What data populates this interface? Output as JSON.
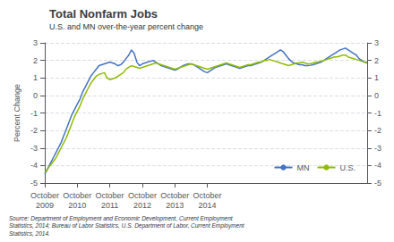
{
  "chart_data": {
    "type": "line",
    "title": "Total Nonfarm Jobs",
    "subtitle": "U.S. and MN over-the-year percent change",
    "ylabel": "Percent Change",
    "source": "Source: Department of Employment and Economic Development, Current Employment\nStatistics, 2014; Bureau of Labor Statistics, U.S. Department of Labor, Current Employment\nStatistics, 2014.",
    "categories": [
      "October\n2009",
      null,
      null,
      null,
      null,
      null,
      null,
      null,
      null,
      null,
      null,
      null,
      "October\n2010",
      null,
      null,
      null,
      null,
      null,
      null,
      null,
      null,
      null,
      null,
      null,
      "October\n2011",
      null,
      null,
      null,
      null,
      null,
      null,
      null,
      null,
      null,
      null,
      null,
      "October\n2012",
      null,
      null,
      null,
      null,
      null,
      null,
      null,
      null,
      null,
      null,
      null,
      "October\n2013",
      null,
      null,
      null,
      null,
      null,
      null,
      null,
      null,
      null,
      null,
      null,
      "October\n2014",
      null,
      null,
      null,
      null,
      null,
      null,
      null,
      null,
      null,
      null,
      null,
      null,
      null,
      null,
      null,
      null,
      null,
      null,
      null,
      null,
      null,
      null,
      null,
      null,
      null,
      null,
      null,
      null,
      null,
      null,
      null,
      null,
      null,
      null,
      null,
      null,
      null,
      null,
      null,
      null,
      null,
      null,
      null,
      null,
      null,
      null,
      null,
      null,
      null,
      null,
      null,
      null,
      null,
      null,
      null,
      null,
      null,
      null,
      null
    ],
    "series": [
      {
        "name": "MN",
        "color": "#4472c4",
        "values": [
          -4.5,
          -4.2,
          -3.9,
          -3.6,
          -3.3,
          -3.0,
          -2.7,
          -2.3,
          -1.9,
          -1.5,
          -1.1,
          -0.8,
          -0.5,
          -0.2,
          0.2,
          0.5,
          0.8,
          1.1,
          1.3,
          1.5,
          1.7,
          1.75,
          1.8,
          1.85,
          1.9,
          1.85,
          1.8,
          1.7,
          1.75,
          1.9,
          2.1,
          2.3,
          2.6,
          2.4,
          1.9,
          1.7,
          1.8,
          1.85,
          1.9,
          1.95,
          2.0,
          1.9,
          1.8,
          1.7,
          1.65,
          1.6,
          1.55,
          1.5,
          1.45,
          1.5,
          1.6,
          1.7,
          1.75,
          1.8,
          1.8,
          1.75,
          1.65,
          1.55,
          1.45,
          1.35,
          1.3,
          1.4,
          1.5,
          1.6,
          1.65,
          1.7,
          1.75,
          1.8,
          1.75,
          1.7,
          1.65,
          1.6,
          1.55,
          1.6,
          1.65,
          1.7,
          1.7,
          1.75,
          1.8,
          1.85,
          1.9,
          2.0,
          2.1,
          2.2,
          2.3,
          2.4,
          2.5,
          2.6,
          2.5,
          2.3,
          2.1,
          1.95,
          1.85,
          1.8,
          1.75,
          1.75,
          1.7,
          1.7,
          1.72,
          1.75,
          1.8,
          1.85,
          1.9,
          2.0,
          2.1,
          2.2,
          2.3,
          2.4,
          2.5,
          2.6,
          2.65,
          2.7,
          2.6,
          2.5,
          2.4,
          2.3,
          2.1,
          2.0,
          1.9,
          1.85
        ]
      },
      {
        "name": "U.S.",
        "color": "#8fbc00",
        "values": [
          -4.4,
          -4.2,
          -4.0,
          -3.8,
          -3.6,
          -3.3,
          -3.0,
          -2.7,
          -2.4,
          -2.0,
          -1.6,
          -1.2,
          -0.9,
          -0.6,
          -0.2,
          0.1,
          0.4,
          0.7,
          0.9,
          1.1,
          1.2,
          1.25,
          1.3,
          1.0,
          0.9,
          0.95,
          1.0,
          1.1,
          1.2,
          1.3,
          1.5,
          1.6,
          1.7,
          1.65,
          1.6,
          1.55,
          1.6,
          1.65,
          1.7,
          1.75,
          1.8,
          1.85,
          1.8,
          1.75,
          1.7,
          1.65,
          1.6,
          1.55,
          1.5,
          1.55,
          1.6,
          1.65,
          1.7,
          1.75,
          1.8,
          1.75,
          1.7,
          1.65,
          1.6,
          1.55,
          1.5,
          1.55,
          1.6,
          1.65,
          1.7,
          1.75,
          1.8,
          1.85,
          1.8,
          1.75,
          1.7,
          1.65,
          1.6,
          1.65,
          1.7,
          1.75,
          1.75,
          1.8,
          1.85,
          1.9,
          1.9,
          2.0,
          2.0,
          2.05,
          2.0,
          1.95,
          1.9,
          1.85,
          1.8,
          1.75,
          1.7,
          1.75,
          1.8,
          1.85,
          1.85,
          1.9,
          1.85,
          1.8,
          1.82,
          1.85,
          1.9,
          1.92,
          1.95,
          2.0,
          2.05,
          2.1,
          2.15,
          2.2,
          2.2,
          2.25,
          2.3,
          2.3,
          2.2,
          2.15,
          2.1,
          2.05,
          2.0,
          1.95,
          1.9,
          1.9
        ]
      }
    ],
    "ylim": [
      -5,
      3
    ],
    "yticks": [
      -5,
      -4,
      -3,
      -2,
      -1,
      0,
      1,
      2,
      3
    ],
    "y2lim": [
      -5,
      3
    ],
    "y2ticks": [
      -5,
      -4,
      -3,
      -2,
      -1,
      0,
      1,
      2,
      3
    ],
    "grid": true,
    "legend": "lower right"
  }
}
